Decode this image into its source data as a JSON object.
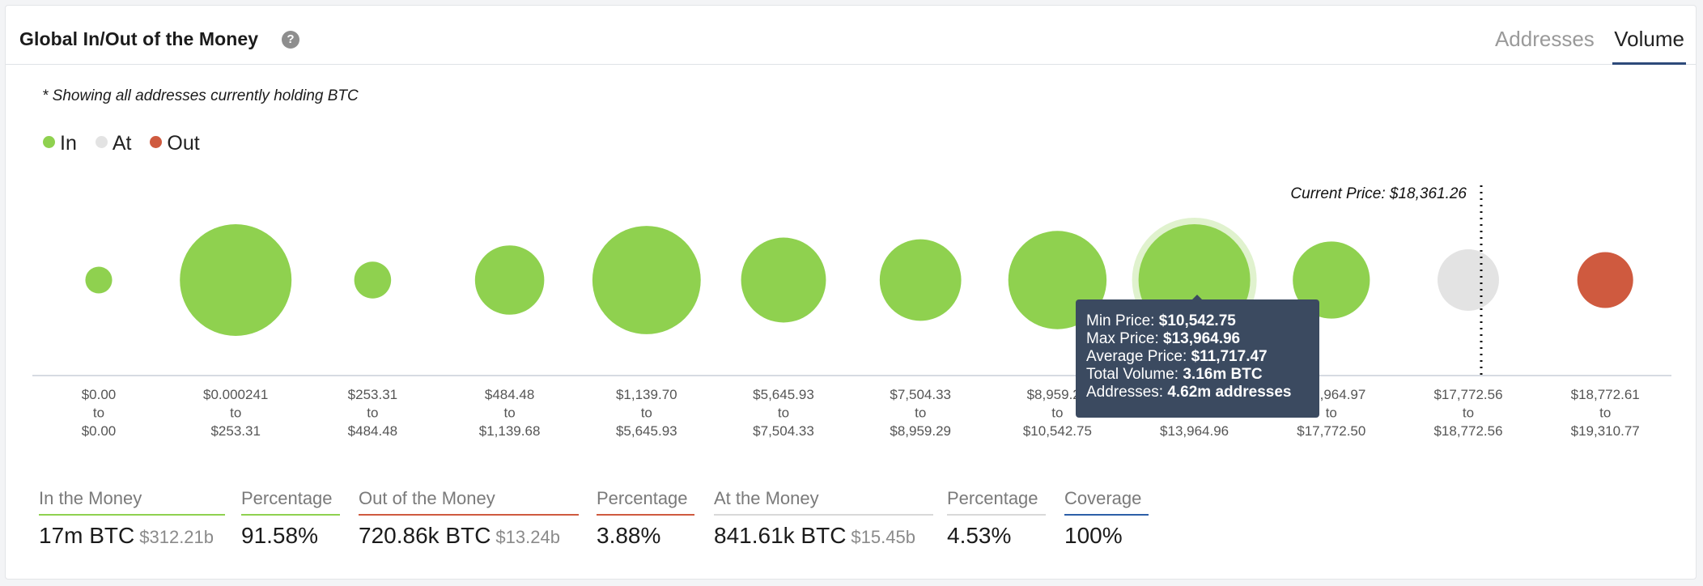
{
  "header": {
    "title": "Global In/Out of the Money",
    "help_icon": "question-circle-icon",
    "tabs": [
      {
        "label": "Addresses",
        "active": false
      },
      {
        "label": "Volume",
        "active": true
      }
    ]
  },
  "note": "* Showing all addresses currently holding BTC",
  "legend": [
    {
      "label": "In",
      "color": "#8fd14f"
    },
    {
      "label": "At",
      "color": "#e3e3e3"
    },
    {
      "label": "Out",
      "color": "#cf5a3f"
    }
  ],
  "chart_data": {
    "type": "bubble",
    "current_price_label": "Current Price: $18,361.26",
    "current_price": 18361.26,
    "to_word": "to",
    "colors": {
      "in": "#8fd14f",
      "at": "#e3e3e3",
      "out": "#cf5a3f"
    },
    "ranges": [
      {
        "min": "$0.00",
        "max": "$0.00",
        "status": "in",
        "size": 0.24
      },
      {
        "min": "$0.000241",
        "max": "$253.31",
        "status": "in",
        "size": 1.0
      },
      {
        "min": "$253.31",
        "max": "$484.48",
        "status": "in",
        "size": 0.33
      },
      {
        "min": "$484.48",
        "max": "$1,139.68",
        "status": "in",
        "size": 0.62
      },
      {
        "min": "$1,139.70",
        "max": "$5,645.93",
        "status": "in",
        "size": 0.97
      },
      {
        "min": "$5,645.93",
        "max": "$7,504.33",
        "status": "in",
        "size": 0.76
      },
      {
        "min": "$7,504.33",
        "max": "$8,959.29",
        "status": "in",
        "size": 0.73
      },
      {
        "min": "$8,959.29",
        "max": "$10,542.75",
        "status": "in",
        "size": 0.88
      },
      {
        "min": "$10,542.75",
        "max": "$13,964.96",
        "status": "in",
        "size": 1.0,
        "highlighted": true
      },
      {
        "min": "$13,964.97",
        "max": "$17,772.50",
        "status": "in",
        "size": 0.69
      },
      {
        "min": "$17,772.56",
        "max": "$18,772.56",
        "status": "at",
        "size": 0.55
      },
      {
        "min": "$18,772.61",
        "max": "$19,310.77",
        "status": "out",
        "size": 0.5
      }
    ]
  },
  "tooltip": {
    "rows": [
      {
        "label": "Min Price:",
        "value": "$10,542.75"
      },
      {
        "label": "Max Price:",
        "value": "$13,964.96"
      },
      {
        "label": "Average Price:",
        "value": "$11,717.47"
      },
      {
        "label": "Total Volume:",
        "value": "3.16m BTC"
      },
      {
        "label": "Addresses:",
        "value": "4.62m addresses"
      }
    ]
  },
  "stats": [
    {
      "label": "In the Money",
      "value": "17m BTC",
      "sub": "$312.21b",
      "color": "#8fd14f"
    },
    {
      "label": "Percentage",
      "value": "91.58%",
      "sub": "",
      "color": "#8fd14f"
    },
    {
      "label": "Out of the Money",
      "value": "720.86k BTC",
      "sub": "$13.24b",
      "color": "#cf5a3f"
    },
    {
      "label": "Percentage",
      "value": "3.88%",
      "sub": "",
      "color": "#cf5a3f"
    },
    {
      "label": "At the Money",
      "value": "841.61k BTC",
      "sub": "$15.45b",
      "color": "#d9d9d9"
    },
    {
      "label": "Percentage",
      "value": "4.53%",
      "sub": "",
      "color": "#d9d9d9"
    },
    {
      "label": "Coverage",
      "value": "100%",
      "sub": "",
      "color": "#2d5fa8"
    }
  ]
}
